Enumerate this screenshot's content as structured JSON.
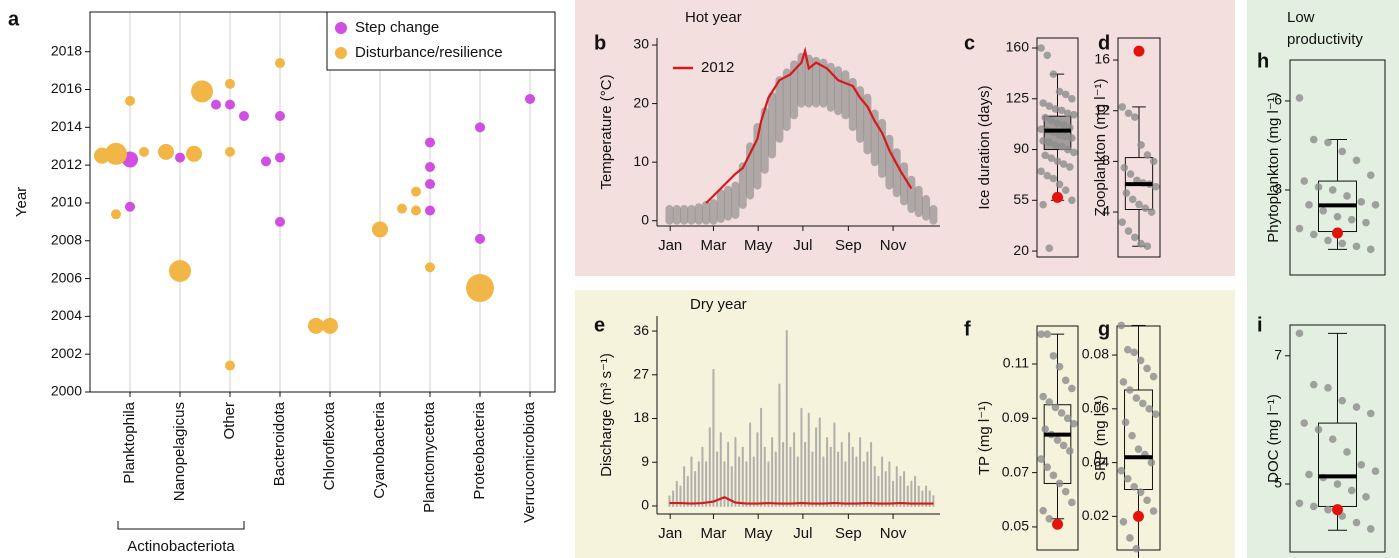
{
  "chart_data": [
    {
      "type": "bubble",
      "panel": "a",
      "ylabel": "Year",
      "categories": [
        "Planktophila",
        "Nanopelagicus",
        "Other",
        "Bacteroidota",
        "Chloroflexota",
        "Cyanobacteria",
        "Planctomycetota",
        "Proteobacteria",
        "Verrucomicrobiota"
      ],
      "group": {
        "label": "Actinobacteriota",
        "members": [
          "Planktophila",
          "Nanopelagicus",
          "Other"
        ]
      },
      "ylim": [
        2000,
        2020.1
      ],
      "yticks": [
        2000,
        2002,
        2004,
        2006,
        2008,
        2010,
        2012,
        2014,
        2016,
        2018
      ],
      "grid": "x",
      "legend": "upper right",
      "series": [
        {
          "name": "Step change",
          "color": "#d04fe0",
          "x": [
            "Planktophila",
            "Planktophila",
            "Nanopelagicus",
            "Other",
            "Other",
            "Other",
            "Bacteroidota",
            "Bacteroidota",
            "Bacteroidota",
            "Bacteroidota",
            "Planctomycetota",
            "Planctomycetota",
            "Planctomycetota",
            "Planctomycetota",
            "Proteobacteria",
            "Proteobacteria",
            "Verrucomicrobiota"
          ],
          "values": [
            2012.3,
            2009.8,
            2012.4,
            2015.2,
            2015.2,
            2014.6,
            2014.6,
            2012.4,
            2012.2,
            2009.0,
            2013.2,
            2011.9,
            2011.0,
            2009.6,
            2014.0,
            2008.1,
            2015.5
          ],
          "sizes": [
            2,
            1,
            1,
            1,
            1,
            1,
            1,
            1,
            1,
            1,
            1,
            1,
            1,
            1,
            1,
            1,
            1
          ]
        },
        {
          "name": "Disturbance/resilience",
          "color": "#f2b647",
          "x": [
            "Planktophila",
            "Planktophila",
            "Planktophila",
            "Planktophila",
            "Planktophila",
            "Nanopelagicus",
            "Nanopelagicus",
            "Nanopelagicus",
            "Other",
            "Other",
            "Other",
            "Other",
            "Bacteroidota",
            "Chloroflexota",
            "Chloroflexota",
            "Cyanobacteria",
            "Planctomycetota",
            "Planctomycetota",
            "Planctomycetota",
            "Planctomycetota",
            "Proteobacteria"
          ],
          "values": [
            2012.6,
            2012.7,
            2015.4,
            2009.4,
            2012.5,
            2012.7,
            2012.6,
            2006.4,
            2016.3,
            2015.9,
            2012.7,
            2001.4,
            2017.4,
            2003.5,
            2003.5,
            2008.6,
            2010.6,
            2009.6,
            2009.7,
            2006.6,
            2005.5
          ],
          "sizes": [
            3,
            1,
            1,
            1,
            2,
            2,
            2,
            3,
            1,
            3,
            1,
            1,
            1,
            2,
            2,
            2,
            1,
            1,
            1,
            1,
            4
          ]
        }
      ]
    },
    {
      "type": "line",
      "panel": "b",
      "group_title": [
        "Hot year"
      ],
      "group_color": "#a3262b",
      "background": "#f4dfdf",
      "ylabel": "Temperature (°C)",
      "xlim": [
        -17,
        369
      ],
      "xticks": [
        {
          "value": 1,
          "label": "Jan"
        },
        {
          "value": 60,
          "label": "Mar"
        },
        {
          "value": 121,
          "label": "May"
        },
        {
          "value": 182,
          "label": "Jul"
        },
        {
          "value": 244,
          "label": "Sep"
        },
        {
          "value": 305,
          "label": "Nov"
        }
      ],
      "ylim": [
        -0.9,
        31.2
      ],
      "yticks": [
        0,
        10,
        20,
        30
      ],
      "legend": "upper left",
      "band": {
        "color": "#7a7a7a",
        "x": [
          0,
          10,
          20,
          30,
          40,
          50,
          60,
          70,
          80,
          90,
          100,
          110,
          120,
          130,
          140,
          150,
          160,
          170,
          180,
          190,
          200,
          210,
          220,
          230,
          240,
          250,
          260,
          270,
          280,
          290,
          300,
          310,
          320,
          330,
          340,
          350,
          360
        ],
        "lower": [
          0,
          0,
          0,
          0,
          0,
          0,
          0,
          0.3,
          0.7,
          1,
          2.7,
          4.3,
          6,
          8.7,
          11.3,
          14,
          16,
          18,
          20,
          20,
          20,
          20,
          19.3,
          18.7,
          18,
          16,
          14,
          12,
          10,
          8,
          6,
          4.7,
          3.3,
          2,
          1.3,
          0.7,
          0
        ],
        "upper": [
          2,
          2,
          2,
          2,
          2.3,
          2.7,
          3,
          4.7,
          5.3,
          6,
          9.3,
          12.7,
          16,
          18.7,
          21.3,
          24,
          25.3,
          26.7,
          28,
          27.7,
          27.3,
          27,
          26.3,
          25.7,
          25,
          23.7,
          22.3,
          21,
          18.3,
          16.7,
          14,
          11.7,
          9.3,
          7,
          5.3,
          3.7,
          2
        ]
      },
      "series": [
        {
          "name": "2012",
          "color": "#d7191c",
          "x": [
            50,
            70,
            90,
            100,
            110,
            120,
            125,
            135,
            150,
            165,
            180,
            185,
            190,
            200,
            215,
            230,
            240,
            250,
            260,
            270,
            280,
            290,
            300,
            315,
            330
          ],
          "values": [
            3,
            5.5,
            8,
            9,
            11.5,
            14,
            17,
            21,
            24,
            25,
            27,
            29,
            26,
            27,
            26,
            24,
            23.5,
            23,
            21,
            19.5,
            17,
            15,
            12,
            8.5,
            5.5
          ]
        }
      ]
    },
    {
      "type": "box",
      "panel": "c",
      "ylabel": "Ice duration (days)",
      "ylim": [
        15.9,
        166.9
      ],
      "yticks": [
        20,
        55,
        90,
        125,
        160
      ],
      "box_fill": "#6e6e6e",
      "point_color": "#8c8c8c",
      "points": [
        160,
        155,
        142,
        130,
        128,
        125,
        122,
        120,
        118,
        117,
        115,
        114,
        112,
        110,
        108,
        107,
        105,
        104,
        103,
        102,
        100,
        99,
        98,
        96,
        95,
        93,
        92,
        90,
        88,
        86,
        84,
        82,
        80,
        78,
        75,
        72,
        70,
        66,
        62,
        55,
        52,
        22
      ],
      "whisker_low": 55,
      "q1": 90,
      "median": 103,
      "q3": 113,
      "whisker_high": 142,
      "highlight": 57,
      "highlight_color": "#e3120b"
    },
    {
      "type": "box",
      "panel": "d",
      "ylabel": "Zooplankton (mg l⁻¹)",
      "ylim": [
        0.45,
        17.74
      ],
      "yticks": [
        4,
        8,
        12,
        16
      ],
      "box_fill": "none",
      "point_color": "#8c8c8c",
      "points": [
        12.3,
        11.8,
        11.5,
        9.3,
        8.5,
        8.0,
        7.5,
        7.0,
        6.5,
        6.3,
        6.2,
        6.0,
        5.5,
        5.0,
        4.6,
        4.3,
        4.0,
        3.2,
        2.5,
        2.0,
        1.5,
        1.3
      ],
      "whisker_low": 1.3,
      "q1": 4.2,
      "median": 6.2,
      "q3": 8.3,
      "whisker_high": 12.3,
      "highlight": 16.7,
      "highlight_color": "#e3120b"
    },
    {
      "type": "line",
      "panel": "e",
      "group_title": [
        "Dry year"
      ],
      "group_color": "#8c8a1e",
      "background": "#f5f3dc",
      "ylabel": "Discharge (m³ s⁻¹)",
      "xlim": [
        -17,
        369
      ],
      "xticks": [
        {
          "value": 1,
          "label": "Jan"
        },
        {
          "value": 60,
          "label": "Mar"
        },
        {
          "value": 121,
          "label": "May"
        },
        {
          "value": 182,
          "label": "Jul"
        },
        {
          "value": 244,
          "label": "Sep"
        },
        {
          "value": 305,
          "label": "Nov"
        }
      ],
      "ylim": [
        -1.65,
        39.1
      ],
      "yticks": [
        0,
        9,
        18,
        27,
        36
      ],
      "band": {
        "color": "#9a9a9a",
        "x": [
          0,
          5,
          10,
          15,
          20,
          25,
          30,
          35,
          40,
          45,
          50,
          55,
          60,
          65,
          70,
          75,
          80,
          85,
          90,
          95,
          100,
          105,
          110,
          115,
          120,
          125,
          130,
          135,
          140,
          145,
          150,
          155,
          160,
          165,
          170,
          175,
          180,
          185,
          190,
          195,
          200,
          205,
          210,
          215,
          220,
          225,
          230,
          235,
          240,
          245,
          250,
          255,
          260,
          265,
          270,
          275,
          280,
          285,
          290,
          295,
          300,
          305,
          310,
          315,
          320,
          325,
          330,
          335,
          340,
          345,
          350,
          355,
          360
        ],
        "upper": [
          2,
          3,
          5,
          4,
          8,
          6,
          10,
          7,
          9,
          12,
          9,
          16,
          28,
          11,
          15,
          9,
          13,
          8,
          14,
          10,
          12,
          9,
          17,
          10,
          15,
          20,
          12,
          9,
          14,
          11,
          25,
          13,
          36,
          12,
          15,
          10,
          20,
          13,
          19,
          11,
          16,
          18,
          10,
          14,
          12,
          17,
          11,
          13,
          9,
          15,
          12,
          10,
          14,
          9,
          11,
          13,
          8,
          6,
          10,
          7,
          9,
          5,
          8,
          6,
          7,
          4,
          5,
          6,
          4,
          3,
          4,
          3,
          2
        ]
      },
      "series": [
        {
          "color": "#d7191c",
          "x": [
            0,
            15,
            30,
            45,
            60,
            75,
            90,
            105,
            120,
            135,
            150,
            165,
            180,
            195,
            210,
            225,
            240,
            255,
            270,
            285,
            300,
            315,
            330,
            345,
            360
          ],
          "values": [
            0.6,
            0.6,
            0.5,
            0.6,
            0.9,
            1.8,
            0.7,
            0.5,
            0.5,
            0.6,
            0.5,
            0.5,
            0.6,
            0.5,
            0.5,
            0.6,
            0.5,
            0.5,
            0.6,
            0.5,
            0.5,
            0.6,
            0.5,
            0.5,
            0.5
          ]
        }
      ]
    },
    {
      "type": "box",
      "panel": "f",
      "ylabel": "TP (mg l⁻¹)",
      "ylim": [
        0.0415,
        0.124
      ],
      "yticks": [
        0.05,
        0.07,
        0.09,
        0.11
      ],
      "box_fill": "none",
      "point_color": "#8c8c8c",
      "points": [
        0.121,
        0.121,
        0.113,
        0.109,
        0.104,
        0.101,
        0.098,
        0.096,
        0.094,
        0.092,
        0.09,
        0.088,
        0.086,
        0.084,
        0.082,
        0.08,
        0.078,
        0.075,
        0.072,
        0.069,
        0.066,
        0.063,
        0.059,
        0.056,
        0.053
      ],
      "whisker_low": 0.053,
      "q1": 0.066,
      "median": 0.084,
      "q3": 0.095,
      "whisker_high": 0.121,
      "highlight": 0.051,
      "highlight_color": "#e3120b"
    },
    {
      "type": "box",
      "panel": "g",
      "ylabel": "SRP (mg l⁻¹)",
      "ylim": [
        0.0075,
        0.0908
      ],
      "yticks": [
        0.02,
        0.04,
        0.06,
        0.08
      ],
      "box_fill": "none",
      "point_color": "#8c8c8c",
      "points": [
        0.091,
        0.082,
        0.081,
        0.078,
        0.075,
        0.072,
        0.07,
        0.067,
        0.064,
        0.062,
        0.06,
        0.058,
        0.055,
        0.05,
        0.045,
        0.043,
        0.04,
        0.037,
        0.034,
        0.031,
        0.029,
        0.026,
        0.022,
        0.018,
        0.012,
        0.008,
        0.003
      ],
      "whisker_low": 0.003,
      "q1": 0.03,
      "median": 0.042,
      "q3": 0.067,
      "whisker_high": 0.091,
      "highlight": 0.02,
      "highlight_color": "#e3120b"
    },
    {
      "type": "box",
      "panel": "h",
      "group_title": [
        "Low",
        "productivity"
      ],
      "group_color": "#2e9e3e",
      "background": "#e3efe0",
      "ylabel": "Phytoplankton (mg l⁻¹)",
      "ylim": [
        0.135,
        7.38
      ],
      "yticks": [
        3,
        6
      ],
      "box_fill": "none",
      "point_color": "#8c8c8c",
      "points": [
        6.1,
        4.7,
        4.6,
        4.3,
        4.0,
        3.5,
        3.3,
        3.1,
        3.0,
        2.8,
        2.6,
        2.5,
        2.5,
        2.3,
        2.1,
        2.0,
        1.9,
        1.7,
        1.5,
        1.3,
        1.2,
        1.1,
        1.0
      ],
      "whisker_low": 1.0,
      "q1": 1.6,
      "median": 2.48,
      "q3": 3.3,
      "whisker_high": 4.7,
      "highlight": 1.55,
      "highlight_color": "#e3120b"
    },
    {
      "type": "box",
      "panel": "i",
      "ylabel": "DOC (mg l⁻¹)",
      "ylim": [
        3.94,
        7.48
      ],
      "yticks": [
        5,
        7
      ],
      "box_fill": "none",
      "point_color": "#8c8c8c",
      "points": [
        7.35,
        6.55,
        6.5,
        6.3,
        6.2,
        6.1,
        5.95,
        5.85,
        5.7,
        5.5,
        5.3,
        5.2,
        5.15,
        5.1,
        5.0,
        4.9,
        4.8,
        4.7,
        4.65,
        4.6,
        4.5,
        4.4,
        4.3
      ],
      "whisker_low": 4.28,
      "q1": 4.65,
      "median": 5.12,
      "q3": 5.95,
      "whisker_high": 7.35,
      "highlight": 4.6,
      "highlight_color": "#e3120b"
    }
  ]
}
